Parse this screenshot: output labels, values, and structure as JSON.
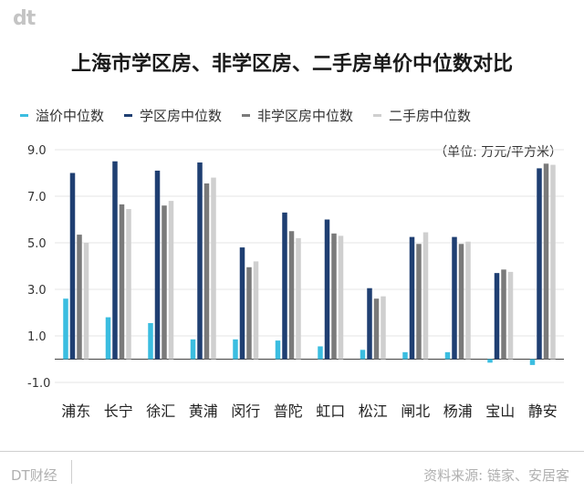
{
  "logo": "dt",
  "chart_data": {
    "type": "bar",
    "title": "上海市学区房、非学区房、二手房单价中位数对比",
    "unit_label": "（单位: 万元/平方米）",
    "categories": [
      "浦东",
      "长宁",
      "徐汇",
      "黄浦",
      "闵行",
      "普陀",
      "虹口",
      "松江",
      "闸北",
      "杨浦",
      "宝山",
      "静安"
    ],
    "series": [
      {
        "name": "溢价中位数",
        "color": "#3bbde0",
        "values": [
          2.6,
          1.8,
          1.55,
          0.85,
          0.85,
          0.8,
          0.55,
          0.4,
          0.3,
          0.3,
          -0.15,
          -0.25
        ]
      },
      {
        "name": "学区房中位数",
        "color": "#1f3f72",
        "values": [
          8.0,
          8.5,
          8.1,
          8.45,
          4.8,
          6.3,
          6.0,
          3.05,
          5.25,
          5.25,
          3.7,
          8.2
        ]
      },
      {
        "name": "非学区房中位数",
        "color": "#7a7a7a",
        "values": [
          5.35,
          6.65,
          6.6,
          7.55,
          3.95,
          5.5,
          5.4,
          2.6,
          4.95,
          4.95,
          3.85,
          8.4
        ]
      },
      {
        "name": "二手房中位数",
        "color": "#cfcfcf",
        "values": [
          5.0,
          6.45,
          6.8,
          7.8,
          4.2,
          5.2,
          5.3,
          2.7,
          5.45,
          5.05,
          3.75,
          8.35
        ]
      }
    ],
    "yticks": [
      9.0,
      7.0,
      5.0,
      3.0,
      1.0,
      -1.0
    ],
    "ytick_labels": [
      "9.0",
      "7.0",
      "5.0",
      "3.0",
      "1.0",
      "-1.0"
    ],
    "ylim": [
      -1.0,
      9.0
    ],
    "grid": true,
    "legend_position": "top"
  },
  "footer": {
    "brand": "DT财经",
    "source": "资料来源: 链家、安居客"
  }
}
